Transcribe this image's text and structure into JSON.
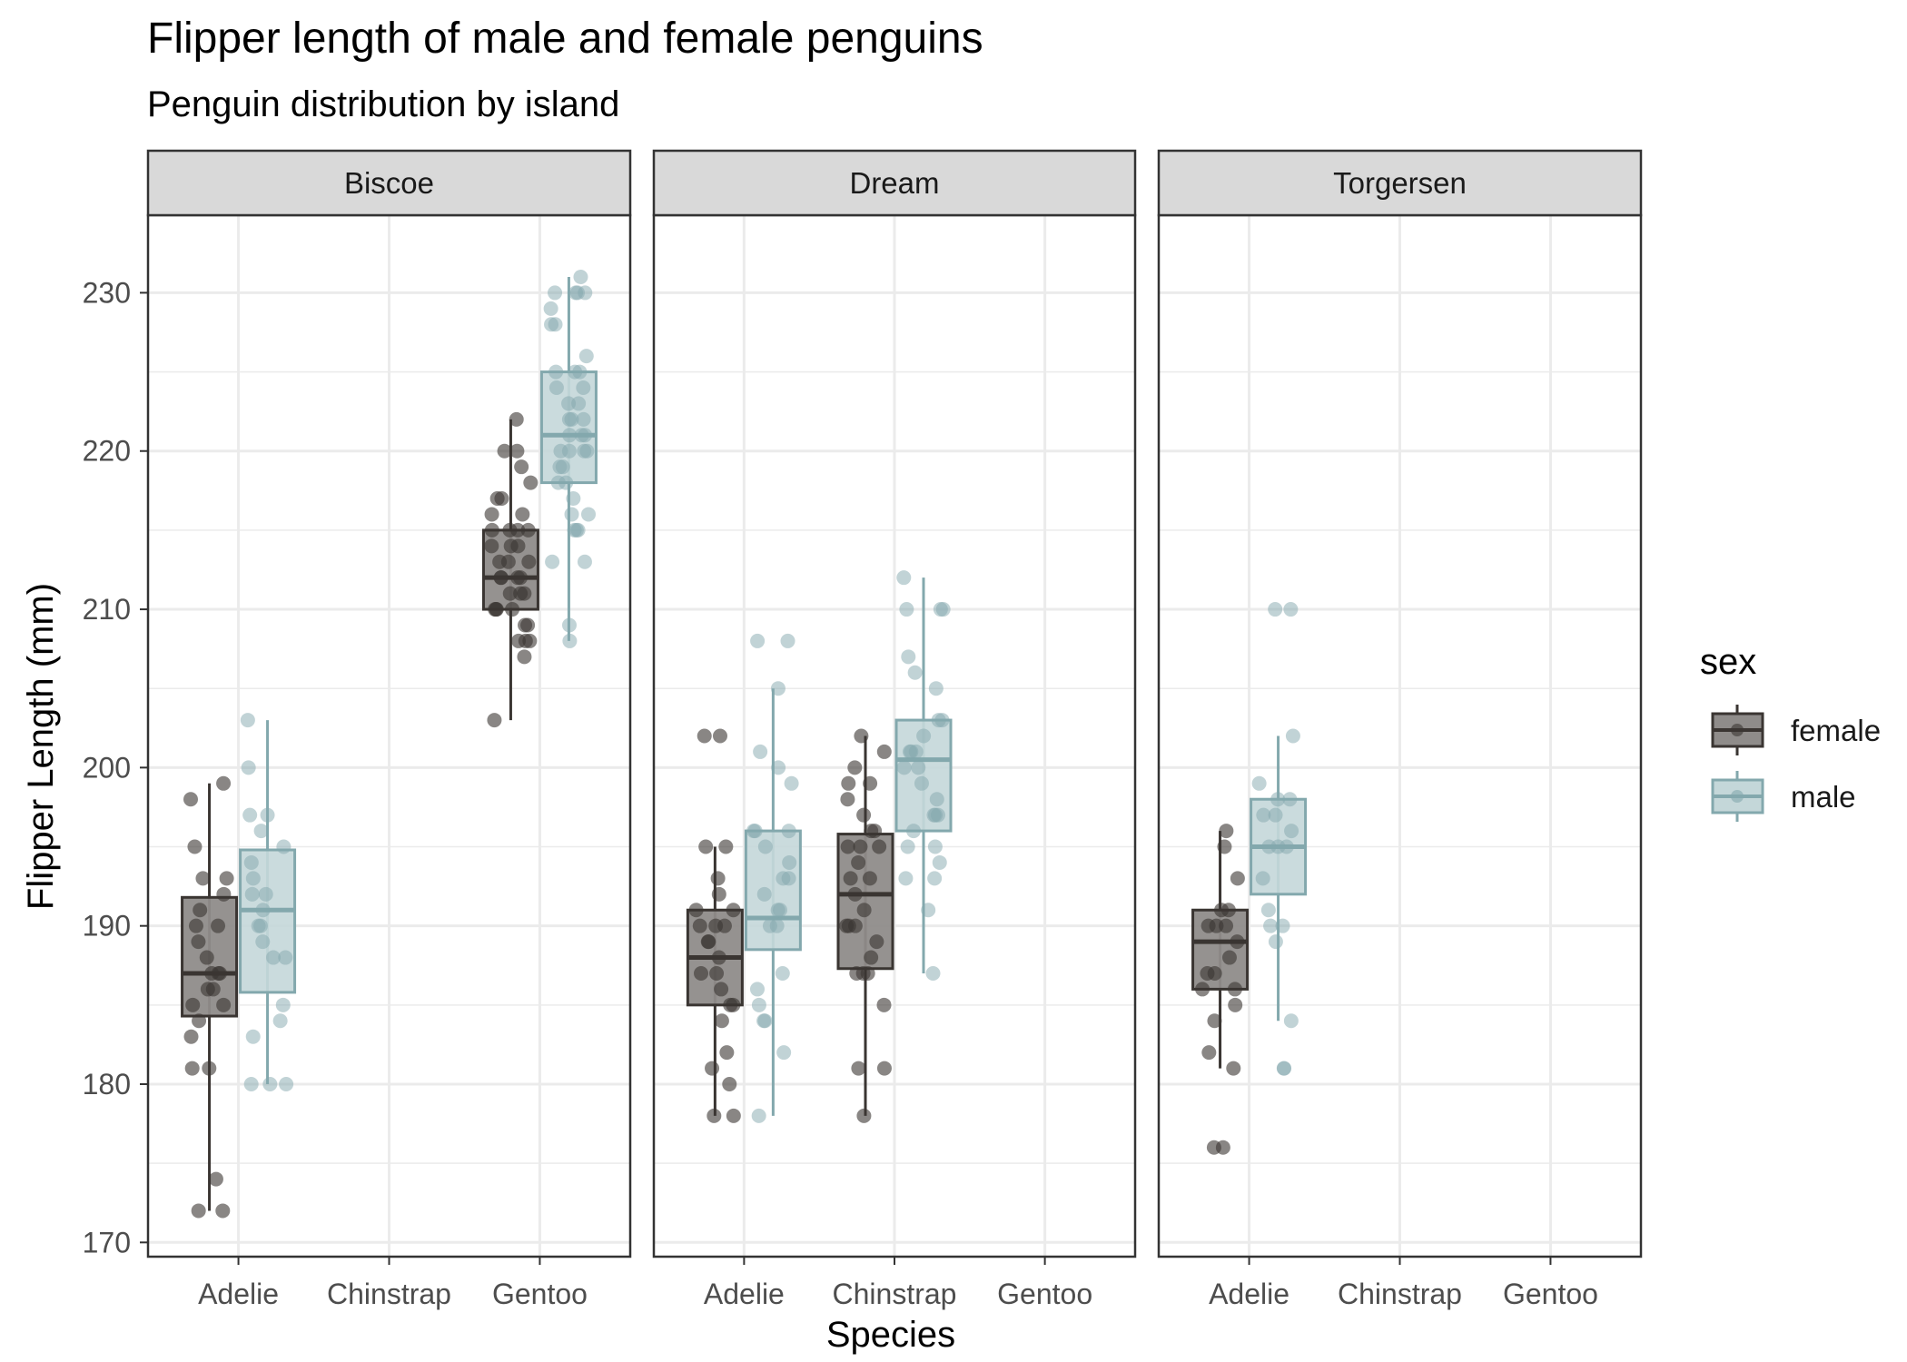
{
  "chart_data": {
    "type": "boxplot",
    "title": "Flipper length of male and female penguins",
    "subtitle": "Penguin distribution by island",
    "xlabel": "Species",
    "ylabel": "Flipper Length (mm)",
    "ylim": [
      169.1,
      234.9
    ],
    "yticks": [
      170,
      180,
      190,
      200,
      210,
      220,
      230
    ],
    "categories": [
      "Adelie",
      "Chinstrap",
      "Gentoo"
    ],
    "grid": true,
    "legend": {
      "title": "sex",
      "position": "right",
      "entries": [
        "female",
        "male"
      ]
    },
    "colors": {
      "female": "#3a3532",
      "female_fill": "#8f8c8a",
      "male": "#83a8ad",
      "male_fill": "#c4d7d9",
      "strip": "#d9d9d9",
      "grid": "#ebebeb",
      "frame": "#333333"
    },
    "panels": [
      {
        "name": "Biscoe",
        "boxes": [
          {
            "species": "Adelie",
            "sex": "female",
            "low": 172,
            "q1": 184.3,
            "median": 187,
            "q3": 191.8,
            "high": 199,
            "points": [
              172,
              172,
              174,
              181,
              181,
              183,
              184,
              185,
              185,
              186,
              186,
              187,
              187,
              187,
              188,
              189,
              190,
              190,
              191,
              192,
              193,
              193,
              195,
              198,
              199
            ]
          },
          {
            "species": "Adelie",
            "sex": "male",
            "low": 180,
            "q1": 185.8,
            "median": 191,
            "q3": 194.8,
            "high": 203,
            "points": [
              180,
              180,
              180,
              183,
              184,
              185,
              188,
              188,
              189,
              190,
              190,
              191,
              192,
              192,
              193,
              194,
              195,
              196,
              197,
              197,
              200,
              203
            ]
          },
          {
            "species": "Gentoo",
            "sex": "female",
            "low": 203,
            "q1": 210,
            "median": 212,
            "q3": 215,
            "high": 222,
            "points": [
              203,
              207,
              208,
              208,
              208,
              209,
              209,
              210,
              210,
              210,
              210,
              211,
              211,
              211,
              212,
              212,
              212,
              212,
              213,
              213,
              213,
              214,
              214,
              214,
              215,
              215,
              215,
              215,
              216,
              216,
              217,
              217,
              218,
              219,
              220,
              220,
              222
            ]
          },
          {
            "species": "Gentoo",
            "sex": "male",
            "low": 208,
            "q1": 218,
            "median": 221,
            "q3": 225,
            "high": 231,
            "points": [
              208,
              209,
              213,
              213,
              215,
              215,
              215,
              216,
              216,
              217,
              218,
              218,
              219,
              219,
              220,
              220,
              220,
              220,
              221,
              221,
              221,
              222,
              222,
              222,
              223,
              223,
              224,
              224,
              225,
              225,
              225,
              226,
              228,
              228,
              229,
              230,
              230,
              230,
              230,
              231
            ]
          }
        ]
      },
      {
        "name": "Dream",
        "boxes": [
          {
            "species": "Adelie",
            "sex": "female",
            "low": 178,
            "q1": 185,
            "median": 188,
            "q3": 191,
            "high": 195,
            "points": [
              178,
              178,
              180,
              181,
              182,
              184,
              185,
              185,
              186,
              187,
              187,
              188,
              189,
              189,
              190,
              190,
              190,
              191,
              191,
              192,
              193,
              195,
              195,
              202,
              202
            ]
          },
          {
            "species": "Adelie",
            "sex": "male",
            "low": 178,
            "q1": 188.5,
            "median": 190.5,
            "q3": 196,
            "high": 205,
            "points": [
              178,
              182,
              184,
              184,
              185,
              186,
              187,
              190,
              190,
              191,
              191,
              192,
              193,
              193,
              194,
              195,
              196,
              196,
              196,
              199,
              200,
              201,
              205,
              208,
              208
            ]
          },
          {
            "species": "Chinstrap",
            "sex": "female",
            "low": 178,
            "q1": 187.3,
            "median": 192,
            "q3": 195.8,
            "high": 202,
            "points": [
              178,
              181,
              181,
              185,
              187,
              187,
              187,
              188,
              189,
              190,
              190,
              190,
              191,
              192,
              193,
              193,
              194,
              195,
              195,
              195,
              196,
              196,
              197,
              198,
              199,
              199,
              200,
              201,
              202
            ]
          },
          {
            "species": "Chinstrap",
            "sex": "male",
            "low": 187,
            "q1": 196,
            "median": 200.5,
            "q3": 203,
            "high": 212,
            "points": [
              187,
              191,
              193,
              193,
              194,
              195,
              195,
              196,
              197,
              197,
              197,
              198,
              199,
              200,
              200,
              201,
              201,
              201,
              202,
              203,
              203,
              205,
              206,
              207,
              210,
              210,
              210,
              212
            ]
          }
        ]
      },
      {
        "name": "Torgersen",
        "boxes": [
          {
            "species": "Adelie",
            "sex": "female",
            "low": 181,
            "q1": 186,
            "median": 189,
            "q3": 191,
            "high": 196,
            "points": [
              176,
              176,
              181,
              182,
              184,
              185,
              186,
              186,
              187,
              187,
              188,
              189,
              190,
              190,
              190,
              191,
              191,
              193,
              195,
              196
            ]
          },
          {
            "species": "Adelie",
            "sex": "male",
            "low": 184,
            "q1": 192,
            "median": 195,
            "q3": 198,
            "high": 202,
            "points": [
              181,
              181,
              184,
              189,
              190,
              190,
              191,
              193,
              195,
              195,
              195,
              196,
              197,
              197,
              198,
              198,
              199,
              202,
              210,
              210
            ]
          }
        ]
      }
    ]
  }
}
